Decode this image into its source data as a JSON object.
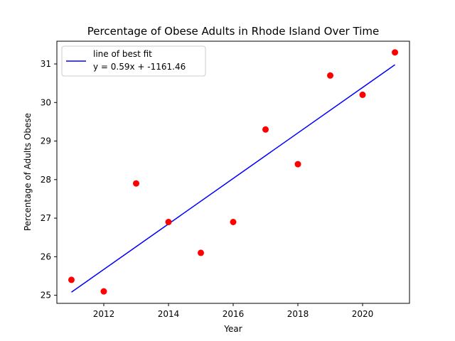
{
  "chart_data": {
    "type": "scatter",
    "title": "Percentage of Obese Adults in Rhode Island Over Time",
    "xlabel": "Year",
    "ylabel": "Percentage of Adults Obese",
    "xlim": [
      2010.55,
      2021.45
    ],
    "ylim": [
      24.79,
      31.59
    ],
    "x_ticks": [
      2012,
      2014,
      2016,
      2018,
      2020
    ],
    "y_ticks": [
      25,
      26,
      27,
      28,
      29,
      30,
      31
    ],
    "grid": false,
    "legend_position": "upper-left",
    "series": [
      {
        "type": "scatter",
        "color": "#ff0000",
        "x": [
          2011,
          2012,
          2013,
          2014,
          2015,
          2016,
          2017,
          2018,
          2019,
          2020,
          2021
        ],
        "y": [
          25.4,
          25.1,
          27.9,
          26.9,
          26.1,
          26.9,
          29.3,
          28.4,
          30.7,
          30.2,
          31.3
        ]
      },
      {
        "type": "line",
        "name": "line of best fit",
        "equation": "y = 0.59x + -1161.46",
        "color": "#0000ff",
        "x": [
          2011,
          2021
        ],
        "y": [
          25.08,
          30.98
        ]
      }
    ]
  }
}
